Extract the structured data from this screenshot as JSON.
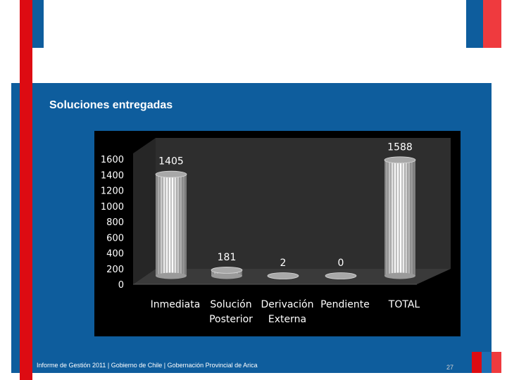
{
  "slide": {
    "title": "Soluciones entregadas",
    "footer": "Informe de Gestión 2011 | Gobierno de Chile | Gobernación Provincial de Arica",
    "page_number": "27",
    "colors": {
      "blue": "#0e5d9d",
      "red": "#dd0b12",
      "chart_background": "#000000",
      "floor": "#3a3a3a",
      "back_wall": "#2e2e2e"
    }
  },
  "chart_data": {
    "type": "bar",
    "style": "3d-cylinder",
    "title": "",
    "xlabel": "",
    "ylabel": "",
    "categories": [
      [
        "Inmediata"
      ],
      [
        "Solución",
        "Posterior"
      ],
      [
        "Derivación",
        "Externa"
      ],
      [
        "Pendiente"
      ],
      [
        "TOTAL"
      ]
    ],
    "values": [
      1405,
      181,
      2,
      0,
      1588
    ],
    "data_labels": [
      "1405",
      "181",
      "2",
      "0",
      "1588"
    ],
    "y_ticks": [
      "0",
      "200",
      "400",
      "600",
      "800",
      "1000",
      "1200",
      "1400",
      "1600"
    ],
    "ylim": [
      0,
      1600
    ],
    "legend": "none",
    "grid": false
  }
}
